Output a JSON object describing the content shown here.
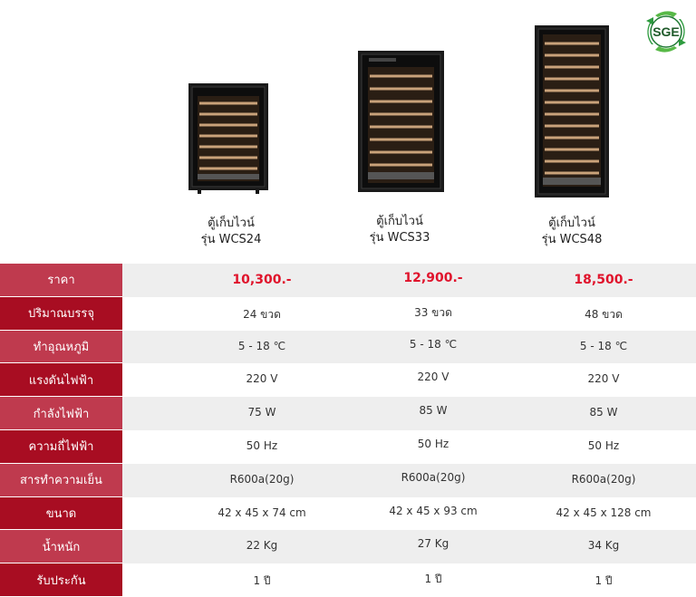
{
  "brand": {
    "logo_text": "SGE",
    "logo_color": "#1f8a3c"
  },
  "products": [
    {
      "line1": "ตู้เก็บไวน์",
      "line2": "รุ่น WCS24"
    },
    {
      "line1": "ตู้เก็บไวน์",
      "line2": "รุ่น WCS33"
    },
    {
      "line1": "ตู้เก็บไวน์",
      "line2": "รุ่น WCS48"
    }
  ],
  "colors": {
    "label_dark": "#a80d22",
    "label_light": "#bf3a4e",
    "price": "#e0142c",
    "row_alt": "#eeeeee"
  },
  "rows": [
    {
      "label": "ราคา",
      "values": [
        "10,300.-",
        "12,900.-",
        "18,500.-"
      ]
    },
    {
      "label": "ปริมาณบรรจุ",
      "values": [
        "24 ขวด",
        "33 ขวด",
        "48 ขวด"
      ]
    },
    {
      "label": "ทำอุณหภูมิ",
      "values": [
        "5 - 18 ℃",
        "5 - 18 ℃",
        "5 - 18 ℃"
      ]
    },
    {
      "label": "แรงดันไฟฟ้า",
      "values": [
        "220 V",
        "220 V",
        "220 V"
      ]
    },
    {
      "label": "กำลังไฟฟ้า",
      "values": [
        "75 W",
        "85 W",
        "85 W"
      ]
    },
    {
      "label": "ความถี่ไฟฟ้า",
      "values": [
        "50 Hz",
        "50 Hz",
        "50 Hz"
      ]
    },
    {
      "label": "สารทำความเย็น",
      "values": [
        "R600a(20g)",
        "R600a(20g)",
        "R600a(20g)"
      ]
    },
    {
      "label": "ขนาด",
      "values": [
        "42 x 45 x 74 cm",
        "42 x 45 x 93 cm",
        "42 x 45 x 128 cm"
      ]
    },
    {
      "label": "น้ำหนัก",
      "values": [
        "22 Kg",
        "27 Kg",
        "34 Kg"
      ]
    },
    {
      "label": "รับประกัน",
      "values": [
        "1 ปี",
        "1 ปี",
        "1 ปี"
      ]
    }
  ]
}
